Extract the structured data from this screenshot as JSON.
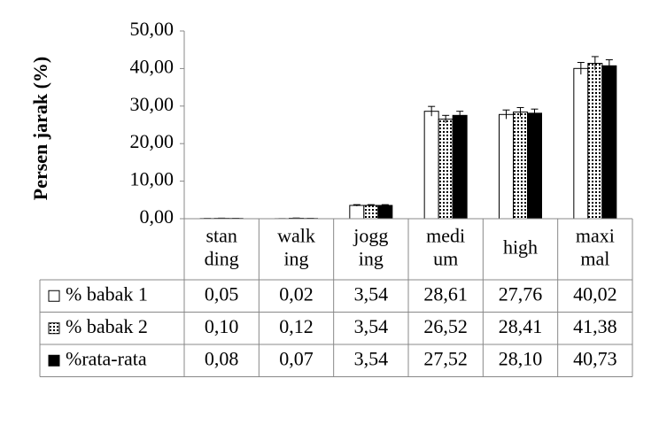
{
  "chart_data": {
    "type": "bar",
    "y_label": "Persen jarak (%)",
    "categories": [
      "stan\nding",
      "walk\ning",
      "jogg\ning",
      "medi\num",
      "high",
      "maxi\nmal"
    ],
    "ylim": [
      0,
      50
    ],
    "yticks": [
      {
        "value": 0,
        "label": "0,00"
      },
      {
        "value": 10,
        "label": "10,00"
      },
      {
        "value": 20,
        "label": "20,00"
      },
      {
        "value": 30,
        "label": "30,00"
      },
      {
        "value": 40,
        "label": "40,00"
      },
      {
        "value": 50,
        "label": "50,00"
      }
    ],
    "grid": false,
    "data_table": true,
    "series": [
      {
        "name": "% babak 1",
        "color": "#ffffff",
        "pattern": "solid",
        "values": [
          0.05,
          0.02,
          3.54,
          28.61,
          27.76,
          40.02
        ],
        "value_labels": [
          "0,05",
          "0,02",
          "3,54",
          "28,61",
          "27,76",
          "40,02"
        ],
        "errors": [
          0.03,
          0.01,
          0.2,
          1.3,
          1.2,
          1.6
        ]
      },
      {
        "name": "% babak 2",
        "color": "#000000",
        "pattern": "dots",
        "values": [
          0.1,
          0.12,
          3.54,
          26.52,
          28.41,
          41.38
        ],
        "value_labels": [
          "0,10",
          "0,12",
          "3,54",
          "26,52",
          "28,41",
          "41,38"
        ],
        "errors": [
          0.05,
          0.06,
          0.2,
          1.0,
          1.2,
          1.8
        ]
      },
      {
        "name": "%rata-rata",
        "color": "#000000",
        "pattern": "solid",
        "values": [
          0.08,
          0.07,
          3.54,
          27.52,
          28.1,
          40.73
        ],
        "value_labels": [
          "0,08",
          "0,07",
          "3,54",
          "27,52",
          "28,10",
          "40,73"
        ],
        "errors": [
          0.04,
          0.04,
          0.2,
          1.1,
          1.1,
          1.6
        ]
      }
    ]
  }
}
